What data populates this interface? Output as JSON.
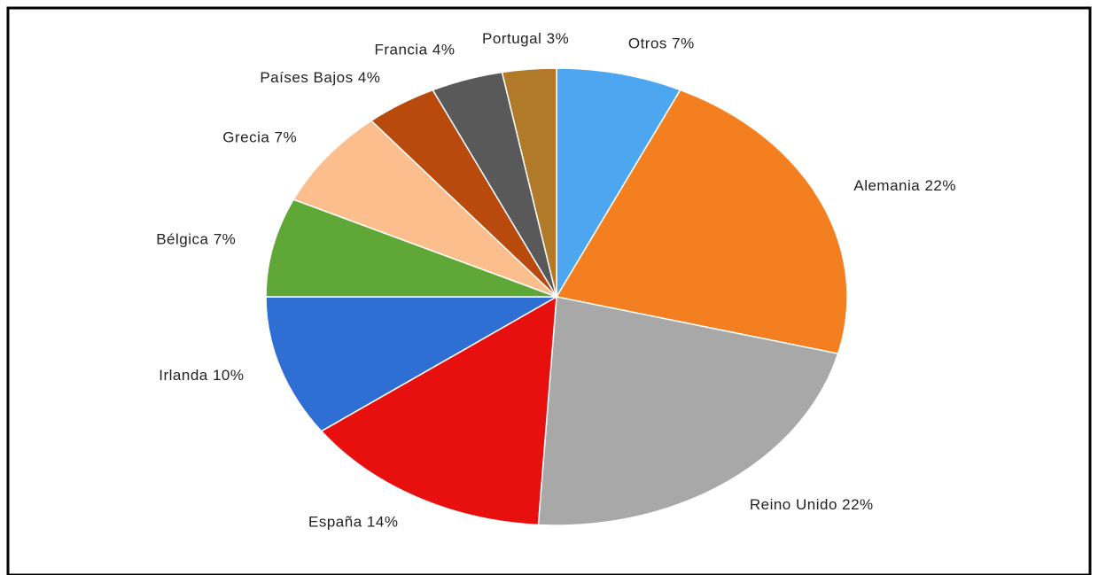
{
  "chart_data": {
    "type": "pie",
    "categories": [
      "Otros",
      "Alemania",
      "Reino Unido",
      "España",
      "Irlanda",
      "Bélgica",
      "Grecia",
      "Países Bajos",
      "Francia",
      "Portugal"
    ],
    "values": [
      7,
      22,
      22,
      14,
      10,
      7,
      7,
      4,
      4,
      3
    ],
    "value_labels": [
      "7%",
      "22%",
      "22%",
      "14%",
      "10%",
      "7%",
      "7%",
      "4%",
      "4%",
      "3%"
    ],
    "colors": [
      "#4da6f0",
      "#f47f20",
      "#a8a8a8",
      "#e8100f",
      "#2f6fd4",
      "#5fa838",
      "#fcbe8c",
      "#b84a0e",
      "#595959",
      "#b07a28"
    ]
  }
}
